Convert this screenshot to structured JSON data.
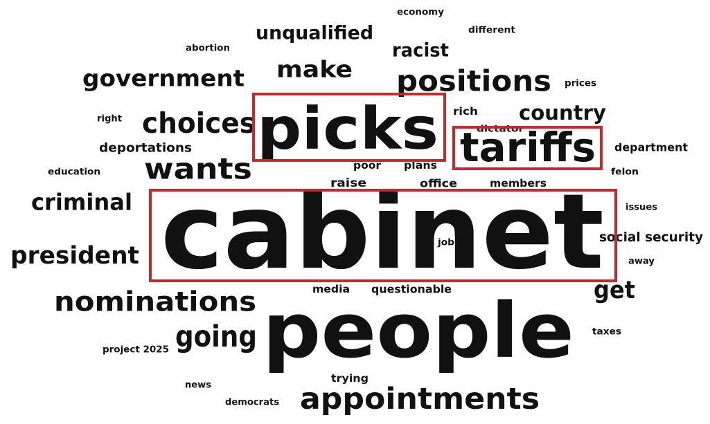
{
  "words": [
    "economy",
    "different",
    "unqualified",
    "abortion",
    "racist",
    "make",
    "government",
    "positions",
    "prices",
    "picks",
    "rich",
    "country",
    "right",
    "choices",
    "dictator",
    "tariffs",
    "deportations",
    "department",
    "wants",
    "education",
    "poor",
    "plans",
    "felon",
    "raise",
    "office",
    "members",
    "criminal",
    "issues",
    "cabinet",
    "social security",
    "job",
    "president",
    "away",
    "media",
    "questionable",
    "get",
    "nominations",
    "going",
    "people",
    "taxes",
    "project 2025",
    "trying",
    "news",
    "appointments",
    "democrats"
  ]
}
